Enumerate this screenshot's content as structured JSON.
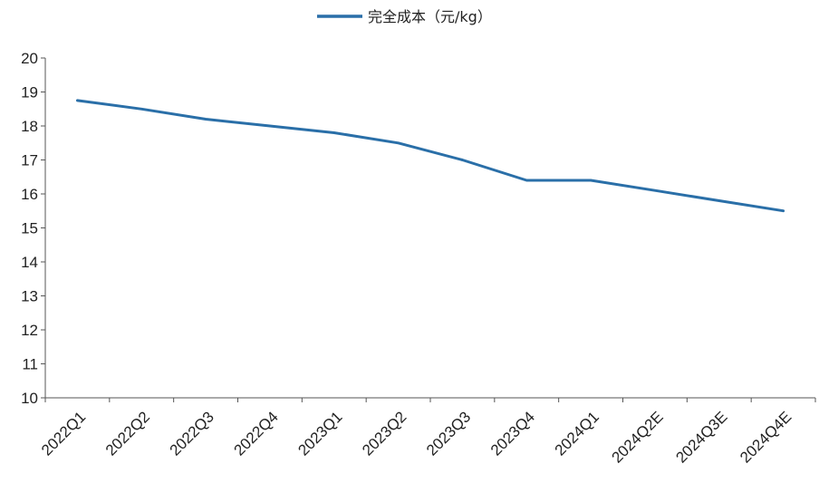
{
  "chart_data": {
    "type": "line",
    "categories": [
      "2022Q1",
      "2022Q2",
      "2022Q3",
      "2022Q4",
      "2023Q1",
      "2023Q2",
      "2023Q3",
      "2023Q4",
      "2024Q1",
      "2024Q2E",
      "2024Q3E",
      "2024Q4E"
    ],
    "series": [
      {
        "name": "完全成本（元/kg）",
        "values": [
          18.75,
          18.5,
          18.2,
          18.0,
          17.8,
          17.5,
          17.0,
          16.4,
          16.4,
          16.1,
          15.8,
          15.5
        ],
        "color": "#2a6fa8"
      }
    ],
    "ylim": [
      10,
      20
    ],
    "yticks": [
      10,
      11,
      12,
      13,
      14,
      15,
      16,
      17,
      18,
      19,
      20
    ],
    "grid": false,
    "legend_position": "top-center"
  }
}
